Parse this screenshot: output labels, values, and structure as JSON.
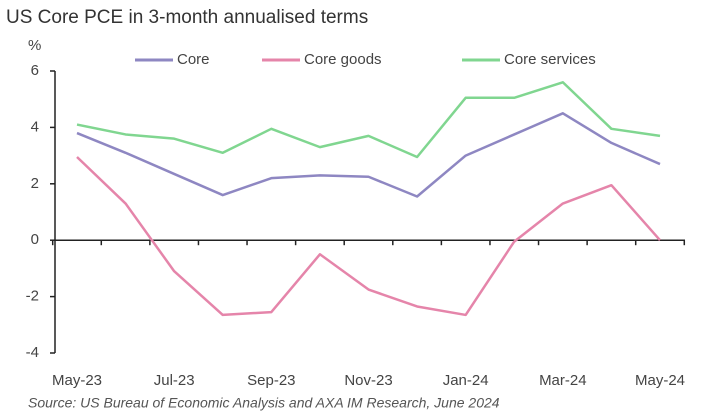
{
  "chart_data": {
    "type": "line",
    "title": "US Core PCE in 3-month annualised terms",
    "y_label": "%",
    "source": "Source: US Bureau of Economic Analysis and AXA IM Research, June 2024",
    "categories": [
      "May-23",
      null,
      "Jul-23",
      null,
      "Sep-23",
      null,
      "Nov-23",
      null,
      "Jan-24",
      null,
      "Mar-24",
      null,
      "May-24"
    ],
    "series": [
      {
        "name": "Core",
        "color": "#8e87c2",
        "values": [
          3.8,
          3.1,
          2.35,
          1.6,
          2.2,
          2.3,
          2.25,
          1.55,
          3.0,
          3.75,
          4.5,
          3.45,
          2.7
        ]
      },
      {
        "name": "Core goods",
        "color": "#e585aa",
        "values": [
          2.95,
          1.3,
          -1.1,
          -2.65,
          -2.55,
          -0.5,
          -1.75,
          -2.35,
          -2.65,
          -0.05,
          1.3,
          1.95,
          0
        ]
      },
      {
        "name": "Core services",
        "color": "#80d690",
        "values": [
          4.1,
          3.75,
          3.6,
          3.1,
          3.95,
          3.3,
          3.7,
          2.95,
          5.05,
          5.05,
          5.6,
          3.95,
          3.7
        ]
      }
    ],
    "ylim": [
      -4,
      6
    ],
    "yticks": [
      -4,
      -2,
      0,
      2,
      4,
      6
    ],
    "legend": "top"
  }
}
